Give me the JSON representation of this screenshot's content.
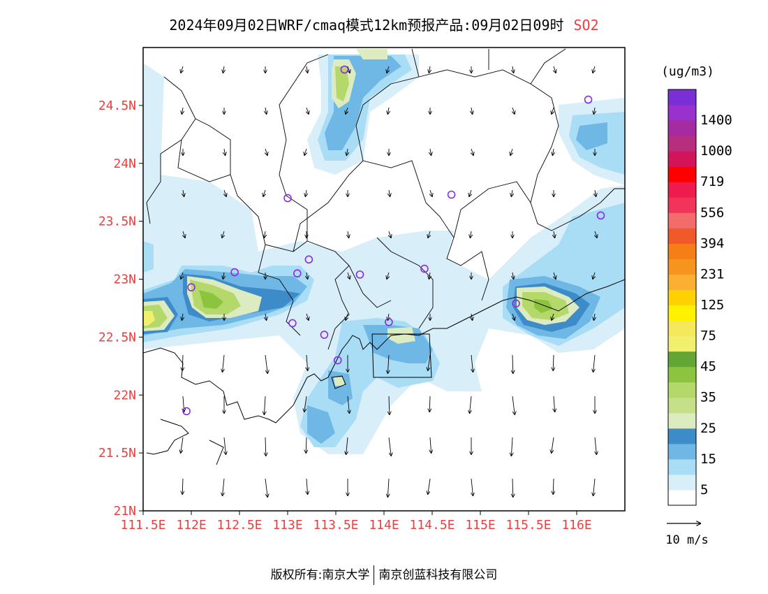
{
  "title": {
    "main": "2024年09月02日WRF/cmaq模式12km预报产品:09月02日09时",
    "species": "SO2",
    "species_color": "#e8413f"
  },
  "axes": {
    "x_ticks": [
      "111.5E",
      "112E",
      "112.5E",
      "113E",
      "113.5E",
      "114E",
      "114.5E",
      "115E",
      "115.5E",
      "116E"
    ],
    "x_tick_values": [
      111.5,
      112.0,
      112.5,
      113.0,
      113.5,
      114.0,
      114.5,
      115.0,
      115.5,
      116.0
    ],
    "y_ticks": [
      "21N",
      "21.5N",
      "22N",
      "22.5N",
      "23N",
      "23.5N",
      "24N",
      "24.5N"
    ],
    "y_tick_values": [
      21.0,
      21.5,
      22.0,
      22.5,
      23.0,
      23.5,
      24.0,
      24.5
    ],
    "lon_range": [
      111.5,
      116.5
    ],
    "lat_range": [
      21.0,
      25.0
    ],
    "tick_color": "#e8413f"
  },
  "colorbar": {
    "unit": "(ug/m3)",
    "levels": [
      {
        "color": "#ffffff"
      },
      {
        "color": "#d8eef9",
        "label": "5"
      },
      {
        "color": "#a9dcf5"
      },
      {
        "color": "#6fb8e6",
        "label": "15"
      },
      {
        "color": "#3d8bc8"
      },
      {
        "color": "#dcebc0",
        "label": "25"
      },
      {
        "color": "#c6e08a"
      },
      {
        "color": "#b4d86a",
        "label": "35"
      },
      {
        "color": "#8cc43f"
      },
      {
        "color": "#63a633",
        "label": "45"
      },
      {
        "color": "#f0f06e"
      },
      {
        "color": "#f5e85a",
        "label": "75"
      },
      {
        "color": "#fff100"
      },
      {
        "color": "#ffd200",
        "label": "125"
      },
      {
        "color": "#fbb034"
      },
      {
        "color": "#f7941d",
        "label": "231"
      },
      {
        "color": "#f57f17"
      },
      {
        "color": "#f05a28",
        "label": "394"
      },
      {
        "color": "#f26c6c"
      },
      {
        "color": "#f2345a",
        "label": "556"
      },
      {
        "color": "#ee1c4c"
      },
      {
        "color": "#ff0000",
        "label": "719"
      },
      {
        "color": "#d4145a"
      },
      {
        "color": "#b72e7f",
        "label": "1000"
      },
      {
        "color": "#a52ba0"
      },
      {
        "color": "#9932cc",
        "label": "1400"
      },
      {
        "color": "#7a2fd6"
      }
    ]
  },
  "wind_legend": {
    "label": "10 m/s"
  },
  "stations": [
    [
      113.59,
      24.81
    ],
    [
      116.12,
      24.55
    ],
    [
      113.0,
      23.7
    ],
    [
      114.7,
      23.73
    ],
    [
      116.25,
      23.55
    ],
    [
      113.22,
      23.17
    ],
    [
      112.45,
      23.06
    ],
    [
      113.1,
      23.05
    ],
    [
      113.75,
      23.04
    ],
    [
      114.42,
      23.09
    ],
    [
      112.0,
      22.93
    ],
    [
      115.37,
      22.79
    ],
    [
      113.05,
      22.62
    ],
    [
      114.05,
      22.63
    ],
    [
      113.38,
      22.52
    ],
    [
      113.52,
      22.3
    ],
    [
      111.95,
      21.86
    ]
  ],
  "footer": {
    "left": "版权所有:南京大学",
    "right": "南京创蓝科技有限公司"
  }
}
